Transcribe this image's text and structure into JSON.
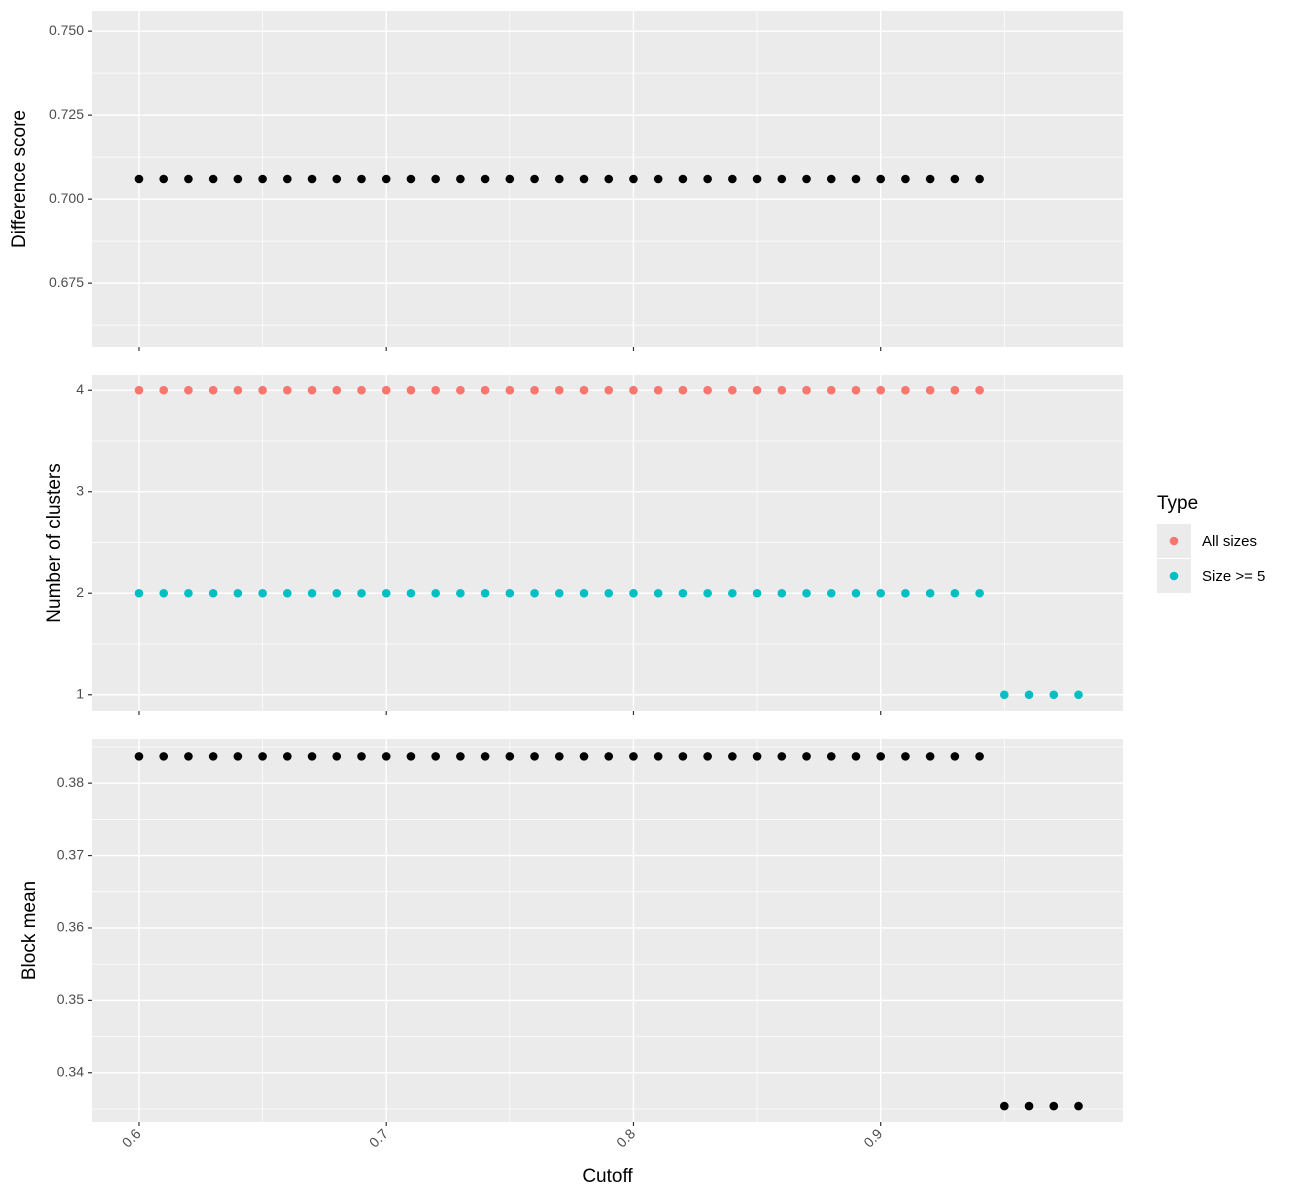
{
  "chart_data": [
    {
      "type": "scatter",
      "ylabel": "Difference score",
      "xlim": [
        0.581,
        0.998
      ],
      "xticks": [
        0.6,
        0.7,
        0.8,
        0.9
      ],
      "ylim": [
        0.656,
        0.756
      ],
      "yticks": [
        {
          "value": 0.675,
          "label": "0.675"
        },
        {
          "value": 0.7,
          "label": "0.700"
        },
        {
          "value": 0.725,
          "label": "0.725"
        },
        {
          "value": 0.75,
          "label": "0.750"
        }
      ],
      "grid": true,
      "series": [
        {
          "color": "#000000",
          "x": [
            0.6,
            0.61,
            0.62,
            0.63,
            0.64,
            0.65,
            0.66,
            0.67,
            0.68,
            0.69,
            0.7,
            0.71,
            0.72,
            0.73,
            0.74,
            0.75,
            0.76,
            0.77,
            0.78,
            0.79,
            0.8,
            0.81,
            0.82,
            0.83,
            0.84,
            0.85,
            0.86,
            0.87,
            0.88,
            0.89,
            0.9,
            0.91,
            0.92,
            0.93,
            0.94
          ],
          "values": [
            0.706,
            0.706,
            0.706,
            0.706,
            0.706,
            0.706,
            0.706,
            0.706,
            0.706,
            0.706,
            0.706,
            0.706,
            0.706,
            0.706,
            0.706,
            0.706,
            0.706,
            0.706,
            0.706,
            0.706,
            0.706,
            0.706,
            0.706,
            0.706,
            0.706,
            0.706,
            0.706,
            0.706,
            0.706,
            0.706,
            0.706,
            0.706,
            0.706,
            0.706,
            0.706
          ]
        }
      ]
    },
    {
      "type": "scatter",
      "ylabel": "Number of clusters",
      "legend_title": "Type",
      "legend": "right",
      "xlim": [
        0.581,
        0.998
      ],
      "xticks": [
        0.6,
        0.7,
        0.8,
        0.9
      ],
      "ylim": [
        0.84,
        4.15
      ],
      "yticks": [
        1,
        2,
        3,
        4
      ],
      "grid": true,
      "series": [
        {
          "name": "All sizes",
          "color": "#F8766D",
          "x": [
            0.6,
            0.61,
            0.62,
            0.63,
            0.64,
            0.65,
            0.66,
            0.67,
            0.68,
            0.69,
            0.7,
            0.71,
            0.72,
            0.73,
            0.74,
            0.75,
            0.76,
            0.77,
            0.78,
            0.79,
            0.8,
            0.81,
            0.82,
            0.83,
            0.84,
            0.85,
            0.86,
            0.87,
            0.88,
            0.89,
            0.9,
            0.91,
            0.92,
            0.93,
            0.94
          ],
          "values": [
            4,
            4,
            4,
            4,
            4,
            4,
            4,
            4,
            4,
            4,
            4,
            4,
            4,
            4,
            4,
            4,
            4,
            4,
            4,
            4,
            4,
            4,
            4,
            4,
            4,
            4,
            4,
            4,
            4,
            4,
            4,
            4,
            4,
            4,
            4
          ]
        },
        {
          "name": "Size >= 5",
          "color": "#00BFC4",
          "x": [
            0.6,
            0.61,
            0.62,
            0.63,
            0.64,
            0.65,
            0.66,
            0.67,
            0.68,
            0.69,
            0.7,
            0.71,
            0.72,
            0.73,
            0.74,
            0.75,
            0.76,
            0.77,
            0.78,
            0.79,
            0.8,
            0.81,
            0.82,
            0.83,
            0.84,
            0.85,
            0.86,
            0.87,
            0.88,
            0.89,
            0.9,
            0.91,
            0.92,
            0.93,
            0.94,
            0.95,
            0.96,
            0.97,
            0.98
          ],
          "values": [
            2,
            2,
            2,
            2,
            2,
            2,
            2,
            2,
            2,
            2,
            2,
            2,
            2,
            2,
            2,
            2,
            2,
            2,
            2,
            2,
            2,
            2,
            2,
            2,
            2,
            2,
            2,
            2,
            2,
            2,
            2,
            2,
            2,
            2,
            2,
            1,
            1,
            1,
            1
          ]
        }
      ]
    },
    {
      "type": "scatter",
      "ylabel": "Block mean",
      "xlabel": "Cutoff",
      "xlim": [
        0.581,
        0.998
      ],
      "xticks": [
        0.6,
        0.7,
        0.8,
        0.9
      ],
      "ylim": [
        0.3332,
        0.3861
      ],
      "yticks": [
        0.34,
        0.35,
        0.36,
        0.37,
        0.38
      ],
      "grid": true,
      "series": [
        {
          "color": "#000000",
          "x": [
            0.6,
            0.61,
            0.62,
            0.63,
            0.64,
            0.65,
            0.66,
            0.67,
            0.68,
            0.69,
            0.7,
            0.71,
            0.72,
            0.73,
            0.74,
            0.75,
            0.76,
            0.77,
            0.78,
            0.79,
            0.8,
            0.81,
            0.82,
            0.83,
            0.84,
            0.85,
            0.86,
            0.87,
            0.88,
            0.89,
            0.9,
            0.91,
            0.92,
            0.93,
            0.94,
            0.95,
            0.96,
            0.97,
            0.98
          ],
          "values": [
            0.3837,
            0.3837,
            0.3837,
            0.3837,
            0.3837,
            0.3837,
            0.3837,
            0.3837,
            0.3837,
            0.3837,
            0.3837,
            0.3837,
            0.3837,
            0.3837,
            0.3837,
            0.3837,
            0.3837,
            0.3837,
            0.3837,
            0.3837,
            0.3837,
            0.3837,
            0.3837,
            0.3837,
            0.3837,
            0.3837,
            0.3837,
            0.3837,
            0.3837,
            0.3837,
            0.3837,
            0.3837,
            0.3837,
            0.3837,
            0.3837,
            0.3354,
            0.3354,
            0.3354,
            0.3354
          ]
        }
      ]
    }
  ]
}
